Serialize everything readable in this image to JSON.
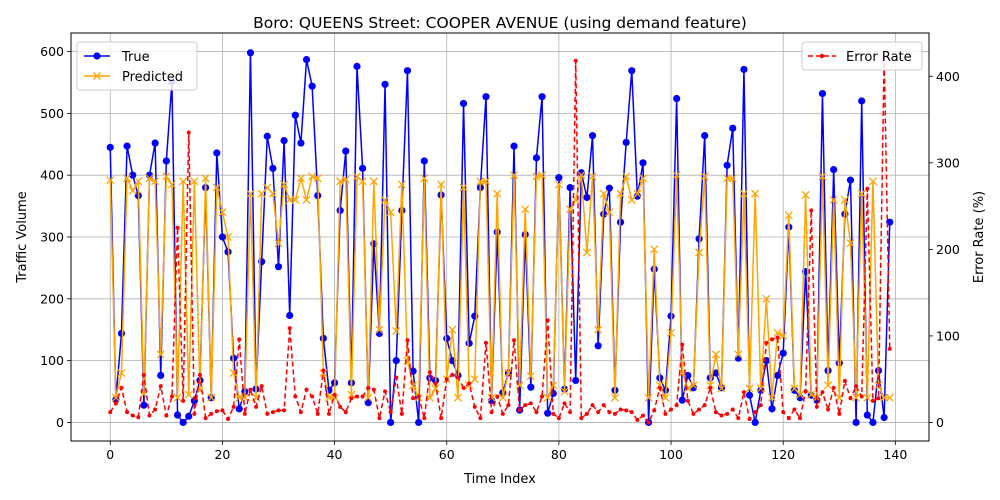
{
  "chart_data": {
    "type": "line",
    "title": "Boro: QUEENS Street: COOPER AVENUE (using demand feature)",
    "xlabel": "Time Index",
    "ylabel": "Traffic Volume",
    "ylabel_right": "Error Rate (%)",
    "xlim": [
      -7,
      146
    ],
    "ylim": [
      -30,
      630
    ],
    "ylim_right": [
      -21.4,
      450
    ],
    "x_ticks": [
      0,
      20,
      40,
      60,
      80,
      100,
      120,
      140
    ],
    "y_ticks": [
      0,
      100,
      200,
      300,
      400,
      500,
      600
    ],
    "y_ticks_right": [
      0,
      100,
      200,
      300,
      400
    ],
    "grid": true,
    "legend_left_position": "top-left",
    "legend_right_position": "top-right",
    "x": [
      0,
      1,
      2,
      3,
      4,
      5,
      6,
      7,
      8,
      9,
      10,
      11,
      12,
      13,
      14,
      15,
      16,
      17,
      18,
      19,
      20,
      21,
      22,
      23,
      24,
      25,
      26,
      27,
      28,
      29,
      30,
      31,
      32,
      33,
      34,
      35,
      36,
      37,
      38,
      39,
      40,
      41,
      42,
      43,
      44,
      45,
      46,
      47,
      48,
      49,
      50,
      51,
      52,
      53,
      54,
      55,
      56,
      57,
      58,
      59,
      60,
      61,
      62,
      63,
      64,
      65,
      66,
      67,
      68,
      69,
      70,
      71,
      72,
      73,
      74,
      75,
      76,
      77,
      78,
      79,
      80,
      81,
      82,
      83,
      84,
      85,
      86,
      87,
      88,
      89,
      90,
      91,
      92,
      93,
      94,
      95,
      96,
      97,
      98,
      99,
      100,
      101,
      102,
      103,
      104,
      105,
      106,
      107,
      108,
      109,
      110,
      111,
      112,
      113,
      114,
      115,
      116,
      117,
      118,
      119,
      120,
      121,
      122,
      123,
      124,
      125,
      126,
      127,
      128,
      129,
      130,
      131,
      132,
      133,
      134,
      135,
      136,
      137,
      138,
      139
    ],
    "series": [
      {
        "name": "True",
        "axis": "left",
        "color": "#0000ff",
        "marker": "circle",
        "values": [
          445,
          37,
          144,
          447,
          400,
          367,
          28,
          400,
          452,
          76,
          423,
          551,
          12,
          0,
          10,
          35,
          68,
          380,
          40,
          436,
          300,
          276,
          104,
          22,
          50,
          598,
          54,
          260,
          463,
          411,
          252,
          456,
          173,
          497,
          452,
          587,
          544,
          367,
          136,
          52,
          64,
          343,
          439,
          64,
          576,
          411,
          32,
          289,
          144,
          547,
          0,
          100,
          343,
          569,
          83,
          0,
          423,
          72,
          68,
          368,
          136,
          100,
          76,
          516,
          128,
          172,
          380,
          527,
          35,
          308,
          48,
          80,
          447,
          20,
          304,
          57,
          428,
          527,
          15,
          47,
          396,
          54,
          380,
          68,
          404,
          364,
          464,
          124,
          337,
          379,
          52,
          324,
          453,
          569,
          366,
          420,
          0,
          248,
          72,
          52,
          172,
          524,
          36,
          76,
          56,
          297,
          464,
          72,
          80,
          56,
          416,
          476,
          104,
          571,
          44,
          0,
          52,
          100,
          22,
          76,
          112,
          316,
          52,
          40,
          244,
          44,
          36,
          532,
          84,
          409,
          96,
          337,
          392,
          0,
          520,
          12,
          0,
          84,
          8,
          324
        ]
      },
      {
        "name": "Predicted",
        "axis": "left",
        "color": "#ffa500",
        "marker": "x",
        "values": [
          392,
          40,
          80,
          395,
          375,
          390,
          46,
          395,
          390,
          110,
          398,
          385,
          40,
          390,
          45,
          390,
          52,
          395,
          40,
          380,
          340,
          300,
          80,
          40,
          40,
          370,
          40,
          370,
          380,
          370,
          290,
          385,
          360,
          360,
          395,
          360,
          398,
          395,
          80,
          40,
          40,
          390,
          393,
          45,
          398,
          390,
          40,
          390,
          150,
          360,
          340,
          148,
          385,
          100,
          60,
          40,
          395,
          40,
          55,
          385,
          70,
          150,
          40,
          380,
          60,
          70,
          390,
          390,
          40,
          370,
          40,
          80,
          400,
          60,
          345,
          75,
          398,
          400,
          40,
          60,
          385,
          50,
          345,
          360,
          400,
          275,
          398,
          150,
          370,
          340,
          40,
          370,
          398,
          360,
          370,
          395,
          40,
          280,
          60,
          40,
          145,
          400,
          80,
          55,
          60,
          275,
          398,
          60,
          110,
          55,
          395,
          395,
          110,
          370,
          55,
          370,
          55,
          200,
          40,
          145,
          140,
          335,
          55,
          45,
          368,
          45,
          40,
          398,
          60,
          360,
          40,
          360,
          290,
          40,
          370,
          40,
          390,
          60,
          40,
          40
        ]
      },
      {
        "name": "Error Rate",
        "axis": "right",
        "color": "#ff0000",
        "marker": "dot",
        "dashed": true,
        "values": [
          12,
          22,
          40,
          12,
          8,
          6,
          55,
          8,
          15,
          42,
          8,
          30,
          225,
          25,
          335,
          10,
          55,
          5,
          10,
          13,
          14,
          4,
          18,
          96,
          10,
          38,
          18,
          42,
          10,
          12,
          14,
          14,
          109,
          30,
          12,
          38,
          30,
          10,
          60,
          10,
          32,
          18,
          12,
          28,
          30,
          30,
          40,
          38,
          5,
          36,
          12,
          52,
          10,
          95,
          28,
          30,
          5,
          58,
          45,
          5,
          50,
          55,
          52,
          40,
          45,
          18,
          5,
          92,
          12,
          30,
          10,
          20,
          95,
          14,
          20,
          22,
          12,
          30,
          118,
          10,
          5,
          22,
          12,
          418,
          5,
          10,
          20,
          12,
          20,
          12,
          10,
          15,
          14,
          12,
          3,
          8,
          0,
          14,
          40,
          10,
          15,
          20,
          90,
          25,
          10,
          15,
          20,
          40,
          12,
          8,
          10,
          15,
          5,
          35,
          4,
          12,
          20,
          92,
          96,
          98,
          12,
          5,
          15,
          5,
          36,
          245,
          18,
          35,
          15,
          40,
          10,
          48,
          28,
          42,
          30,
          270,
          25,
          28,
          422,
          85
        ]
      }
    ]
  }
}
